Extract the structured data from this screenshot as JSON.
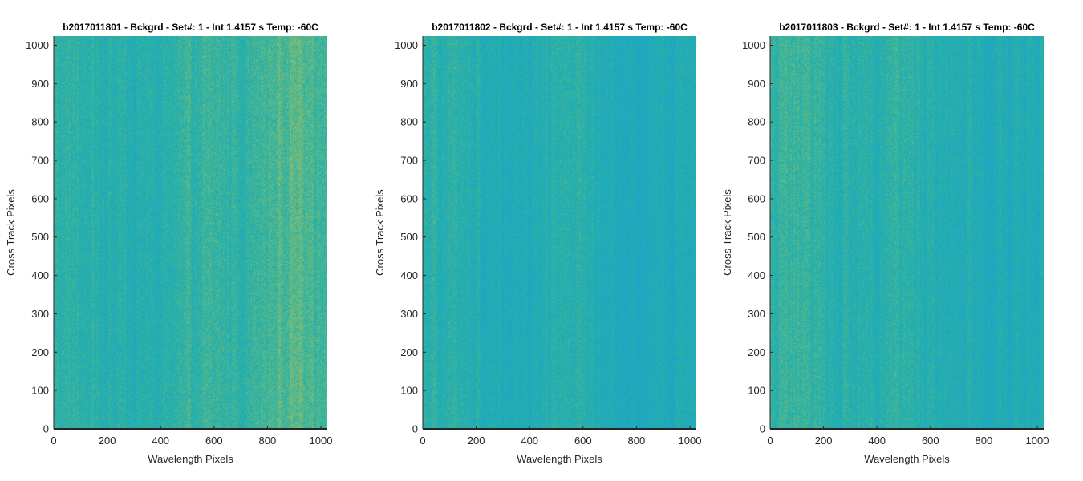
{
  "colors": {
    "colormap": "parula",
    "low": "#1a9fd4",
    "mid": "#27b2a6",
    "high": "#a6c060",
    "axis_line": "#262626",
    "background": "#ffffff"
  },
  "chart_data": [
    {
      "type": "heatmap",
      "title": "b2017011801 - Bckgrd - Set#: 1 - Int 1.4157 s Temp: -60C",
      "xlabel": "Wavelength Pixels",
      "ylabel": "Cross Track Pixels",
      "xlim": [
        0,
        1024
      ],
      "ylim": [
        0,
        1024
      ],
      "xticks": [
        0,
        200,
        400,
        600,
        800,
        1000
      ],
      "yticks": [
        0,
        100,
        200,
        300,
        400,
        500,
        600,
        700,
        800,
        900,
        1000
      ],
      "columns": 1024,
      "rows": 1024,
      "column_profile_x": [
        0,
        100,
        200,
        300,
        400,
        450,
        500,
        600,
        700,
        750,
        800,
        850,
        900,
        950,
        1000,
        1024
      ],
      "column_profile_level": [
        0.5,
        0.44,
        0.42,
        0.4,
        0.38,
        0.45,
        0.48,
        0.52,
        0.5,
        0.52,
        0.58,
        0.66,
        0.7,
        0.66,
        0.62,
        0.6
      ],
      "row_profile_y": [
        0,
        200,
        400,
        600,
        800,
        1024
      ],
      "row_profile_level": [
        0.02,
        0.0,
        -0.01,
        0.0,
        0.01,
        0.02
      ]
    },
    {
      "type": "heatmap",
      "title": "b2017011802 - Bckgrd - Set#: 1 - Int 1.4157 s Temp: -60C",
      "xlabel": "Wavelength Pixels",
      "ylabel": "Cross Track Pixels",
      "xlim": [
        0,
        1024
      ],
      "ylim": [
        0,
        1024
      ],
      "xticks": [
        0,
        200,
        400,
        600,
        800,
        1000
      ],
      "yticks": [
        0,
        100,
        200,
        300,
        400,
        500,
        600,
        700,
        800,
        900,
        1000
      ],
      "columns": 1024,
      "rows": 1024,
      "column_profile_x": [
        0,
        100,
        200,
        300,
        400,
        500,
        600,
        700,
        800,
        900,
        1000,
        1024
      ],
      "column_profile_level": [
        0.42,
        0.45,
        0.4,
        0.32,
        0.36,
        0.42,
        0.4,
        0.32,
        0.26,
        0.3,
        0.34,
        0.35
      ],
      "row_profile_y": [
        0,
        200,
        400,
        600,
        800,
        1024
      ],
      "row_profile_level": [
        0.0,
        -0.02,
        -0.03,
        -0.01,
        0.0,
        0.01
      ]
    },
    {
      "type": "heatmap",
      "title": "b2017011803 - Bckgrd - Set#: 1 - Int 1.4157 s Temp: -60C",
      "xlabel": "Wavelength Pixels",
      "ylabel": "Cross Track Pixels",
      "xlim": [
        0,
        1024
      ],
      "ylim": [
        0,
        1024
      ],
      "xticks": [
        0,
        200,
        400,
        600,
        800,
        1000
      ],
      "yticks": [
        0,
        100,
        200,
        300,
        400,
        500,
        600,
        700,
        800,
        900,
        1000
      ],
      "columns": 1024,
      "rows": 1024,
      "column_profile_x": [
        0,
        100,
        200,
        300,
        400,
        500,
        600,
        700,
        800,
        900,
        1000,
        1024
      ],
      "column_profile_level": [
        0.5,
        0.54,
        0.48,
        0.42,
        0.44,
        0.48,
        0.4,
        0.34,
        0.3,
        0.32,
        0.36,
        0.37
      ],
      "row_profile_y": [
        0,
        200,
        400,
        600,
        800,
        1024
      ],
      "row_profile_level": [
        0.0,
        -0.01,
        -0.02,
        -0.01,
        0.01,
        0.02
      ]
    }
  ]
}
